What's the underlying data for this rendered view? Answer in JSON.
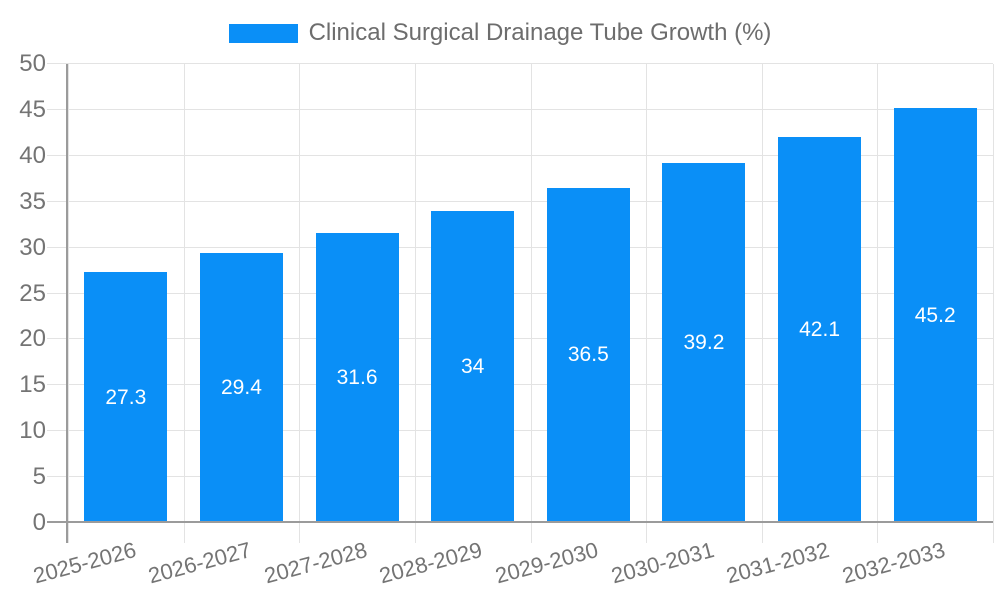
{
  "chart": {
    "legend_label": "Clinical Surgical Drainage Tube Growth (%)"
  },
  "chart_data": {
    "type": "bar",
    "title": "Clinical Surgical Drainage Tube Growth (%)",
    "categories": [
      "2025-2026",
      "2026-2027",
      "2027-2028",
      "2028-2029",
      "2029-2030",
      "2030-2031",
      "2031-2032",
      "2032-2033"
    ],
    "values": [
      27.3,
      29.4,
      31.6,
      34,
      36.5,
      39.2,
      42.1,
      45.2
    ],
    "xlabel": "",
    "ylabel": "",
    "ylim": [
      0,
      50
    ],
    "yticks": [
      0,
      5,
      10,
      15,
      20,
      25,
      30,
      35,
      40,
      45,
      50
    ],
    "grid": true,
    "grid_vertical": true,
    "legend_position": "top-center",
    "x_label_rotation_deg": -15,
    "colors": {
      "bar": "#0a8ff7",
      "grid": "#e3e3e3",
      "tick": "#c6c6c6",
      "axis": "#9b9b9b",
      "tick_label": "#747474",
      "title": "#6d6d6d",
      "value_label": "#ffffff",
      "background": "#ffffff"
    }
  }
}
